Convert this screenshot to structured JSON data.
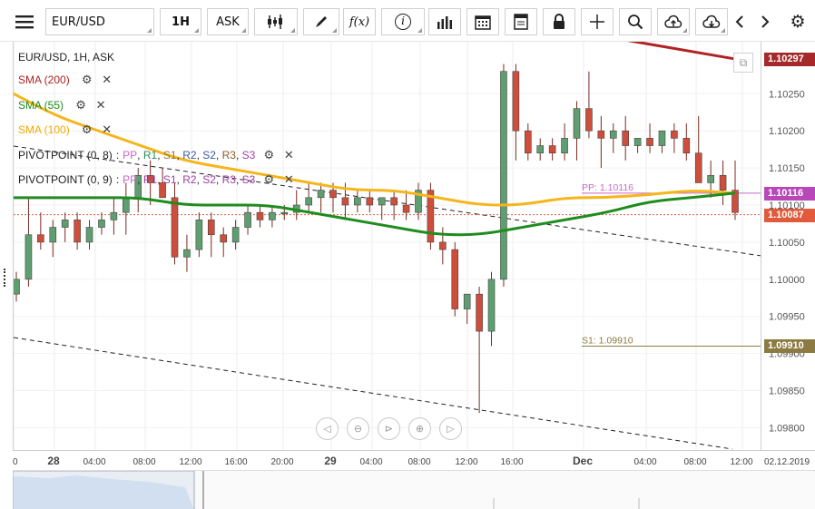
{
  "toolbar": {
    "symbol": "EUR/USD",
    "timeframe": "1H",
    "price_side": "ASK",
    "function_label": "f(x)",
    "info_label": "i"
  },
  "legend": {
    "header": "EUR/USD, 1H, ASK",
    "sma200": "SMA (200)",
    "sma55": "SMA (55)",
    "sma100": "SMA (100)",
    "pivot1_prefix": "PIVOTPOINT (0, 8)",
    "pivot2_prefix": "PIVOTPOINT (0, 9)",
    "pivot_levels": [
      "PP",
      "R1",
      "S1",
      "R2",
      "S2",
      "R3",
      "S3"
    ]
  },
  "chart_data": {
    "type": "candlestick",
    "symbol": "EUR/USD",
    "ylim": [
      1.0977,
      1.1032
    ],
    "y_ticks": [
      "1.10250",
      "1.10200",
      "1.10150",
      "1.10100",
      "1.10050",
      "1.10000",
      "1.09950",
      "1.09900",
      "1.09850",
      "1.09800"
    ],
    "x_ticks": [
      "0",
      "28",
      "04:00",
      "08:00",
      "12:00",
      "16:00",
      "20:00",
      "29",
      "04:00",
      "08:00",
      "12:00",
      "16:00",
      "Dec",
      "04:00",
      "08:00",
      "12:00",
      "02.12.2019"
    ],
    "bold_x_ticks": [
      "28",
      "29",
      "Dec"
    ],
    "candles": [
      {
        "o": 1.0998,
        "h": 1.1001,
        "l": 1.0997,
        "c": 1.1
      },
      {
        "o": 1.1,
        "h": 1.1011,
        "l": 1.0999,
        "c": 1.1006
      },
      {
        "o": 1.1006,
        "h": 1.1009,
        "l": 1.1004,
        "c": 1.1005
      },
      {
        "o": 1.1005,
        "h": 1.1008,
        "l": 1.1003,
        "c": 1.1007
      },
      {
        "o": 1.1007,
        "h": 1.1009,
        "l": 1.1005,
        "c": 1.1008
      },
      {
        "o": 1.1008,
        "h": 1.1009,
        "l": 1.1004,
        "c": 1.1005
      },
      {
        "o": 1.1005,
        "h": 1.1008,
        "l": 1.1004,
        "c": 1.1007
      },
      {
        "o": 1.1007,
        "h": 1.1009,
        "l": 1.1006,
        "c": 1.1008
      },
      {
        "o": 1.1008,
        "h": 1.1011,
        "l": 1.1006,
        "c": 1.1009
      },
      {
        "o": 1.1009,
        "h": 1.1013,
        "l": 1.1006,
        "c": 1.1011
      },
      {
        "o": 1.1011,
        "h": 1.1015,
        "l": 1.1009,
        "c": 1.1014
      },
      {
        "o": 1.1014,
        "h": 1.1016,
        "l": 1.101,
        "c": 1.1013
      },
      {
        "o": 1.1013,
        "h": 1.1015,
        "l": 1.1011,
        "c": 1.1011
      },
      {
        "o": 1.1011,
        "h": 1.1013,
        "l": 1.1002,
        "c": 1.1003
      },
      {
        "o": 1.1003,
        "h": 1.1006,
        "l": 1.1001,
        "c": 1.1004
      },
      {
        "o": 1.1004,
        "h": 1.1009,
        "l": 1.1003,
        "c": 1.1008
      },
      {
        "o": 1.1008,
        "h": 1.1009,
        "l": 1.1003,
        "c": 1.1006
      },
      {
        "o": 1.1006,
        "h": 1.1007,
        "l": 1.1003,
        "c": 1.1005
      },
      {
        "o": 1.1005,
        "h": 1.1008,
        "l": 1.1004,
        "c": 1.1007
      },
      {
        "o": 1.1007,
        "h": 1.101,
        "l": 1.1006,
        "c": 1.1009
      },
      {
        "o": 1.1009,
        "h": 1.101,
        "l": 1.1007,
        "c": 1.1008
      },
      {
        "o": 1.1008,
        "h": 1.101,
        "l": 1.1007,
        "c": 1.1009
      },
      {
        "o": 1.1009,
        "h": 1.101,
        "l": 1.1008,
        "c": 1.1009
      },
      {
        "o": 1.1009,
        "h": 1.1012,
        "l": 1.1008,
        "c": 1.101
      },
      {
        "o": 1.101,
        "h": 1.1013,
        "l": 1.1009,
        "c": 1.1011
      },
      {
        "o": 1.1011,
        "h": 1.1013,
        "l": 1.1009,
        "c": 1.1012
      },
      {
        "o": 1.1012,
        "h": 1.1013,
        "l": 1.1009,
        "c": 1.1011
      },
      {
        "o": 1.1011,
        "h": 1.1013,
        "l": 1.1008,
        "c": 1.101
      },
      {
        "o": 1.101,
        "h": 1.1012,
        "l": 1.1009,
        "c": 1.1011
      },
      {
        "o": 1.1011,
        "h": 1.1012,
        "l": 1.1009,
        "c": 1.101
      },
      {
        "o": 1.101,
        "h": 1.1011,
        "l": 1.1008,
        "c": 1.1011
      },
      {
        "o": 1.1011,
        "h": 1.1012,
        "l": 1.1008,
        "c": 1.101
      },
      {
        "o": 1.101,
        "h": 1.1012,
        "l": 1.1008,
        "c": 1.1009
      },
      {
        "o": 1.1009,
        "h": 1.1013,
        "l": 1.1008,
        "c": 1.1012
      },
      {
        "o": 1.1012,
        "h": 1.1013,
        "l": 1.1004,
        "c": 1.1005
      },
      {
        "o": 1.1005,
        "h": 1.1007,
        "l": 1.1002,
        "c": 1.1004
      },
      {
        "o": 1.1004,
        "h": 1.1005,
        "l": 1.0995,
        "c": 1.0996
      },
      {
        "o": 1.0996,
        "h": 1.0998,
        "l": 1.0994,
        "c": 1.0998
      },
      {
        "o": 1.0998,
        "h": 1.0999,
        "l": 1.0982,
        "c": 1.0993
      },
      {
        "o": 1.0993,
        "h": 1.1001,
        "l": 1.0991,
        "c": 1.1
      },
      {
        "o": 1.1,
        "h": 1.1029,
        "l": 1.0999,
        "c": 1.1028
      },
      {
        "o": 1.1028,
        "h": 1.1029,
        "l": 1.1016,
        "c": 1.102
      },
      {
        "o": 1.102,
        "h": 1.1021,
        "l": 1.1016,
        "c": 1.1017
      },
      {
        "o": 1.1017,
        "h": 1.1019,
        "l": 1.1016,
        "c": 1.1018
      },
      {
        "o": 1.1018,
        "h": 1.1019,
        "l": 1.1016,
        "c": 1.1017
      },
      {
        "o": 1.1017,
        "h": 1.1021,
        "l": 1.1016,
        "c": 1.1019
      },
      {
        "o": 1.1019,
        "h": 1.1024,
        "l": 1.1016,
        "c": 1.1023
      },
      {
        "o": 1.1023,
        "h": 1.1028,
        "l": 1.1019,
        "c": 1.102
      },
      {
        "o": 1.102,
        "h": 1.1022,
        "l": 1.1015,
        "c": 1.1019
      },
      {
        "o": 1.1019,
        "h": 1.1021,
        "l": 1.1017,
        "c": 1.102
      },
      {
        "o": 1.102,
        "h": 1.1022,
        "l": 1.1016,
        "c": 1.1018
      },
      {
        "o": 1.1018,
        "h": 1.1019,
        "l": 1.1017,
        "c": 1.1019
      },
      {
        "o": 1.1019,
        "h": 1.1021,
        "l": 1.1017,
        "c": 1.1018
      },
      {
        "o": 1.1018,
        "h": 1.102,
        "l": 1.1017,
        "c": 1.102
      },
      {
        "o": 1.102,
        "h": 1.1021,
        "l": 1.1017,
        "c": 1.1019
      },
      {
        "o": 1.1019,
        "h": 1.1021,
        "l": 1.1016,
        "c": 1.1017
      },
      {
        "o": 1.1017,
        "h": 1.1022,
        "l": 1.1013,
        "c": 1.1013
      },
      {
        "o": 1.1013,
        "h": 1.1016,
        "l": 1.1011,
        "c": 1.1014
      },
      {
        "o": 1.1014,
        "h": 1.1016,
        "l": 1.101,
        "c": 1.1012
      },
      {
        "o": 1.1012,
        "h": 1.1016,
        "l": 1.1008,
        "c": 1.1009
      }
    ],
    "series": [
      {
        "name": "SMA (200)",
        "color": "#b22222",
        "values": [
          1.10332,
          1.10297
        ]
      },
      {
        "name": "SMA (100)",
        "color": "#f5b51b",
        "values": [
          1.1025,
          1.1022,
          1.102,
          1.1018,
          1.1016,
          1.1015,
          1.1014,
          1.1013,
          1.1012,
          1.1012,
          1.1011,
          1.101,
          1.101,
          1.1011,
          1.1011,
          1.10114,
          1.1012,
          1.10116
        ]
      },
      {
        "name": "SMA (55)",
        "color": "#1e8c1e",
        "values": [
          1.1011,
          1.1011,
          1.1011,
          1.1011,
          1.101,
          1.101,
          1.101,
          1.1009,
          1.1008,
          1.1007,
          1.1006,
          1.1006,
          1.1007,
          1.1008,
          1.1009,
          1.10105,
          1.1011,
          1.10116
        ]
      }
    ],
    "pivot_lines": [
      {
        "label": "PP: 1.10116",
        "value": 1.10116,
        "color": "#c966c9"
      },
      {
        "label": "S1: 1.09910",
        "value": 1.0991,
        "color": "#8c7a43"
      }
    ],
    "last_price": 1.10087,
    "price_badges": [
      {
        "label": "1.10297",
        "value": 1.10297,
        "color": "#a5282a"
      },
      {
        "label": "1.10116",
        "value": 1.10116,
        "color": "#b848b8"
      },
      {
        "label": "1.10087",
        "value": 1.10087,
        "color": "#e05a3b"
      },
      {
        "label": "1.09910",
        "value": 1.0991,
        "color": "#8c7a43"
      }
    ],
    "up_color": "#5f9e70",
    "down_color": "#cf4d3b"
  }
}
